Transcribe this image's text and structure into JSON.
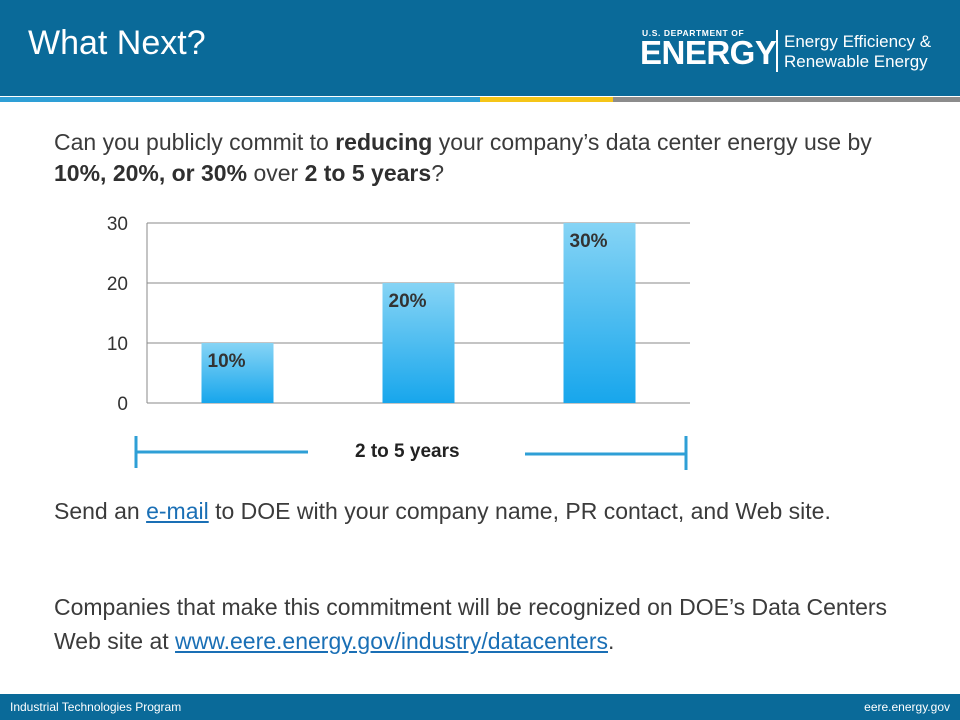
{
  "header": {
    "title": "What Next?",
    "logo": {
      "small_text": "U.S. DEPARTMENT OF",
      "big_text": "ENERGY",
      "program_line1": "Energy Efficiency &",
      "program_line2": "Renewable Energy"
    }
  },
  "question": {
    "t1": "Can you publicly commit to ",
    "b1": "reducing",
    "t2": " your company’s data center energy use by ",
    "b2": "10%, 20%, or 30%",
    "t3": " over ",
    "b3": "2 to 5 years",
    "t4": "?"
  },
  "chart_data": {
    "type": "bar",
    "categories": [
      "",
      "",
      ""
    ],
    "values": [
      10,
      20,
      30
    ],
    "data_labels": [
      "10%",
      "20%",
      "30%"
    ],
    "yticks": [
      "0",
      "10",
      "20",
      "30"
    ],
    "ylim": [
      0,
      30
    ],
    "grid": true,
    "title": "",
    "xlabel": "",
    "ylabel": ""
  },
  "range": {
    "label": "2 to 5 years"
  },
  "send": {
    "t1": "Send an ",
    "link": "e-mail",
    "t2": " to DOE with your company name, PR contact, and Web site."
  },
  "companies": {
    "t1": "Companies that make this commitment will be recognized on DOE’s Data Centers Web site at ",
    "link": "www.eere.energy.gov/industry/datacenters",
    "t2": "."
  },
  "footer": {
    "left": "Industrial Technologies Program",
    "right": "eere.energy.gov"
  },
  "colors": {
    "header_bg": "#0a6a99",
    "bar_top": "#86d4f5",
    "bar_bottom": "#17a6ec",
    "range_line": "#2e9fd6",
    "link": "#1a6fb5",
    "stripe_yellow": "#f5c518"
  }
}
